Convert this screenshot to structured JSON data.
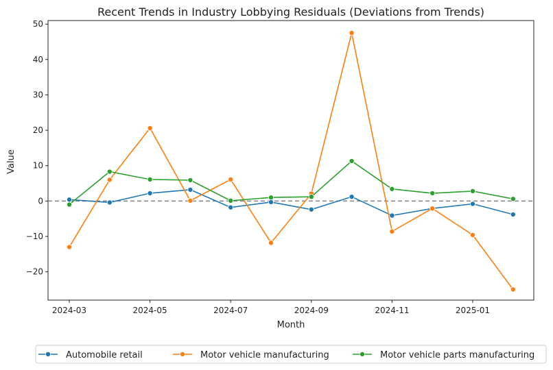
{
  "chart_data": {
    "type": "line",
    "title": "Recent Trends in Industry Lobbying Residuals (Deviations from Trends)",
    "xlabel": "Month",
    "ylabel": "Value",
    "x": [
      "2024-03",
      "2024-04",
      "2024-05",
      "2024-06",
      "2024-07",
      "2024-08",
      "2024-09",
      "2024-10",
      "2024-11",
      "2024-12",
      "2025-01",
      "2025-02"
    ],
    "x_tick_labels": [
      "2024-03",
      "2024-05",
      "2024-07",
      "2024-09",
      "2024-11",
      "2025-01"
    ],
    "y_ticks": [
      -20,
      -10,
      0,
      10,
      20,
      30,
      40,
      50
    ],
    "y_tick_labels": [
      "−20",
      "−10",
      "0",
      "10",
      "20",
      "30",
      "40",
      "50"
    ],
    "ylim": [
      -28,
      51
    ],
    "reference_line": {
      "y": 0,
      "style": "dashed",
      "color": "#808080"
    },
    "legend_position": "bottom-center",
    "series": [
      {
        "name": "Automobile retail",
        "color": "#1f77b4",
        "values": [
          0.4,
          -0.4,
          2.2,
          3.2,
          -1.8,
          -0.3,
          -2.4,
          1.2,
          -4.1,
          -2.1,
          -0.8,
          -3.8
        ]
      },
      {
        "name": "Motor vehicle manufacturing",
        "color": "#ff7f0e",
        "values": [
          -13.0,
          6.0,
          20.6,
          0.1,
          6.1,
          -11.8,
          2.1,
          47.5,
          -8.6,
          -2.1,
          -9.6,
          -25.0
        ]
      },
      {
        "name": "Motor vehicle parts manufacturing",
        "color": "#2ca02c",
        "values": [
          -1.0,
          8.3,
          6.1,
          5.9,
          0.1,
          1.0,
          1.2,
          11.3,
          3.4,
          2.2,
          2.8,
          0.6
        ]
      }
    ]
  }
}
